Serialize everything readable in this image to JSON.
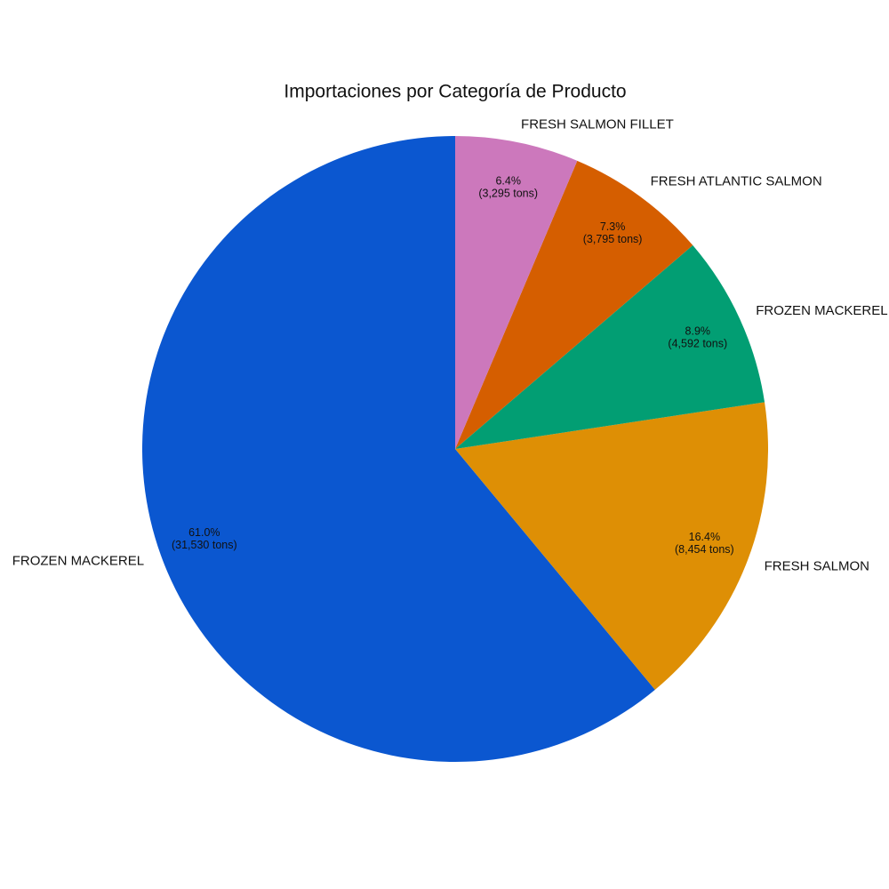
{
  "chart_data": {
    "type": "pie",
    "title": "Importaciones por Categoría de Producto",
    "categories": [
      "FROZEN MACKEREL",
      "FRESH SALMON",
      "FROZEN MACKEREL",
      "FRESH ATLANTIC SALMON",
      "FRESH SALMON FILLET"
    ],
    "values": [
      31530,
      8454,
      4592,
      3795,
      3295
    ],
    "value_labels": [
      "(31,530 tons)",
      "(8,454 tons)",
      "(4,592 tons)",
      "(3,795 tons)",
      "(3,295 tons)"
    ],
    "percents": [
      61.0,
      16.4,
      8.9,
      7.3,
      6.4
    ],
    "percent_labels": [
      "61.0%",
      "16.4%",
      "8.9%",
      "7.3%",
      "6.4%"
    ],
    "colors": [
      "#0b57d0",
      "#de8f05",
      "#029e73",
      "#d55e00",
      "#cc78bc"
    ]
  }
}
